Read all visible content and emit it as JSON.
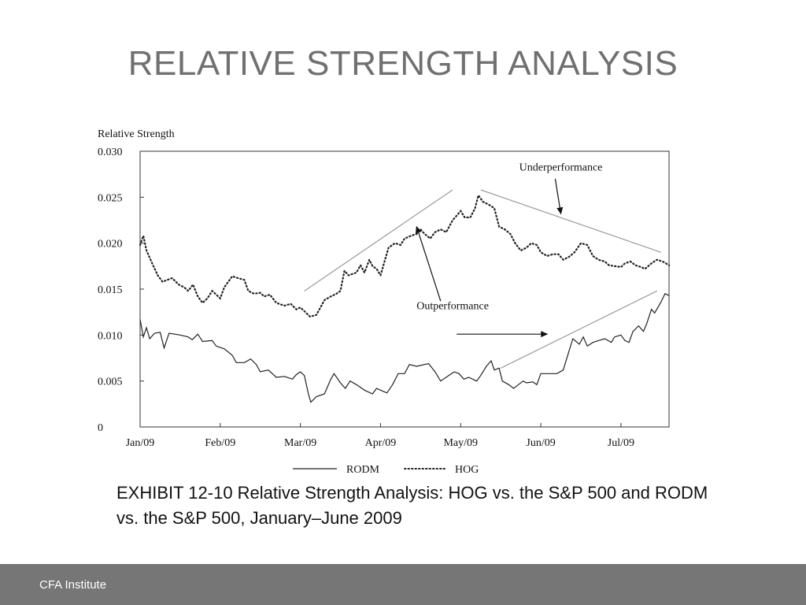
{
  "slide": {
    "title": "RELATIVE STRENGTH ANALYSIS",
    "caption": "EXHIBIT 12-10 Relative Strength Analysis: HOG vs. the S&P 500 and RODM vs. the S&P 500, January–June 2009",
    "footer": "CFA Institute"
  },
  "chart_data": {
    "type": "line",
    "ylabel": "Relative Strength",
    "xlabel": "",
    "ylim": [
      0,
      0.03
    ],
    "y_ticks": [
      "0.030",
      "0.025",
      "0.020",
      "0.015",
      "0.010",
      "0.005",
      "0"
    ],
    "y_tick_values": [
      0.03,
      0.025,
      0.02,
      0.015,
      0.01,
      0.005,
      0
    ],
    "x_ticks": [
      "Jan/09",
      "Feb/09",
      "Mar/09",
      "Apr/09",
      "May/09",
      "Jun/09",
      "Jul/09"
    ],
    "x_tick_values": [
      0,
      1,
      2,
      3,
      4,
      5,
      6
    ],
    "x_unit": "months since Jan/09",
    "grid": false,
    "legend": "bottom",
    "colors": {
      "line": "#222222",
      "trend": "#9a9a9a",
      "axis": "#333333"
    },
    "series": [
      {
        "name": "RODM",
        "style": "solid",
        "points": [
          [
            0.0,
            0.0117
          ],
          [
            0.04,
            0.0098
          ],
          [
            0.08,
            0.0108
          ],
          [
            0.12,
            0.0096
          ],
          [
            0.18,
            0.0102
          ],
          [
            0.25,
            0.0103
          ],
          [
            0.3,
            0.0086
          ],
          [
            0.36,
            0.0102
          ],
          [
            0.5,
            0.01
          ],
          [
            0.6,
            0.0098
          ],
          [
            0.65,
            0.0095
          ],
          [
            0.72,
            0.0101
          ],
          [
            0.78,
            0.0093
          ],
          [
            0.9,
            0.0094
          ],
          [
            0.95,
            0.0088
          ],
          [
            1.05,
            0.0085
          ],
          [
            1.15,
            0.0078
          ],
          [
            1.2,
            0.007
          ],
          [
            1.3,
            0.007
          ],
          [
            1.38,
            0.0074
          ],
          [
            1.45,
            0.0068
          ],
          [
            1.5,
            0.006
          ],
          [
            1.6,
            0.0062
          ],
          [
            1.7,
            0.0054
          ],
          [
            1.8,
            0.0055
          ],
          [
            1.9,
            0.0052
          ],
          [
            1.95,
            0.0057
          ],
          [
            2.0,
            0.006
          ],
          [
            2.05,
            0.0056
          ],
          [
            2.1,
            0.0036
          ],
          [
            2.13,
            0.0027
          ],
          [
            2.2,
            0.0033
          ],
          [
            2.3,
            0.0036
          ],
          [
            2.38,
            0.0052
          ],
          [
            2.42,
            0.0058
          ],
          [
            2.5,
            0.0048
          ],
          [
            2.56,
            0.0042
          ],
          [
            2.62,
            0.005
          ],
          [
            2.7,
            0.0046
          ],
          [
            2.8,
            0.004
          ],
          [
            2.9,
            0.0036
          ],
          [
            2.95,
            0.0042
          ],
          [
            3.0,
            0.004
          ],
          [
            3.08,
            0.0037
          ],
          [
            3.15,
            0.0046
          ],
          [
            3.22,
            0.0058
          ],
          [
            3.3,
            0.0058
          ],
          [
            3.36,
            0.0068
          ],
          [
            3.45,
            0.0066
          ],
          [
            3.6,
            0.0069
          ],
          [
            3.68,
            0.006
          ],
          [
            3.75,
            0.005
          ],
          [
            3.85,
            0.0056
          ],
          [
            3.92,
            0.006
          ],
          [
            3.98,
            0.0058
          ],
          [
            4.04,
            0.0052
          ],
          [
            4.1,
            0.0054
          ],
          [
            4.2,
            0.005
          ],
          [
            4.25,
            0.0056
          ],
          [
            4.32,
            0.0066
          ],
          [
            4.38,
            0.0072
          ],
          [
            4.42,
            0.0062
          ],
          [
            4.48,
            0.0064
          ],
          [
            4.52,
            0.005
          ],
          [
            4.6,
            0.0046
          ],
          [
            4.66,
            0.0042
          ],
          [
            4.72,
            0.0046
          ],
          [
            4.78,
            0.005
          ],
          [
            4.82,
            0.0048
          ],
          [
            4.9,
            0.0049
          ],
          [
            4.95,
            0.0046
          ],
          [
            5.0,
            0.0058
          ],
          [
            5.08,
            0.0058
          ],
          [
            5.15,
            0.0058
          ],
          [
            5.2,
            0.0058
          ],
          [
            5.28,
            0.0062
          ],
          [
            5.35,
            0.0082
          ],
          [
            5.4,
            0.0096
          ],
          [
            5.48,
            0.009
          ],
          [
            5.53,
            0.0098
          ],
          [
            5.58,
            0.0088
          ],
          [
            5.65,
            0.0092
          ],
          [
            5.72,
            0.0094
          ],
          [
            5.8,
            0.0096
          ],
          [
            5.88,
            0.0092
          ],
          [
            5.92,
            0.0098
          ],
          [
            6.0,
            0.01
          ],
          [
            6.05,
            0.0094
          ],
          [
            6.1,
            0.0092
          ],
          [
            6.15,
            0.0104
          ],
          [
            6.22,
            0.011
          ],
          [
            6.28,
            0.0104
          ],
          [
            6.32,
            0.0112
          ],
          [
            6.38,
            0.0128
          ],
          [
            6.42,
            0.0124
          ],
          [
            6.5,
            0.0136
          ],
          [
            6.55,
            0.0145
          ],
          [
            6.6,
            0.0143
          ]
        ]
      },
      {
        "name": "HOG",
        "style": "dotted",
        "points": [
          [
            0.0,
            0.0198
          ],
          [
            0.04,
            0.0208
          ],
          [
            0.08,
            0.0192
          ],
          [
            0.15,
            0.0178
          ],
          [
            0.22,
            0.0165
          ],
          [
            0.28,
            0.0158
          ],
          [
            0.34,
            0.016
          ],
          [
            0.4,
            0.0162
          ],
          [
            0.48,
            0.0155
          ],
          [
            0.55,
            0.0152
          ],
          [
            0.6,
            0.0148
          ],
          [
            0.66,
            0.0155
          ],
          [
            0.72,
            0.0142
          ],
          [
            0.78,
            0.0135
          ],
          [
            0.84,
            0.014
          ],
          [
            0.9,
            0.0148
          ],
          [
            1.0,
            0.014
          ],
          [
            1.05,
            0.0152
          ],
          [
            1.1,
            0.0158
          ],
          [
            1.15,
            0.0164
          ],
          [
            1.22,
            0.0162
          ],
          [
            1.3,
            0.016
          ],
          [
            1.35,
            0.0148
          ],
          [
            1.42,
            0.0145
          ],
          [
            1.5,
            0.0146
          ],
          [
            1.55,
            0.0142
          ],
          [
            1.62,
            0.0144
          ],
          [
            1.7,
            0.0135
          ],
          [
            1.8,
            0.0132
          ],
          [
            1.88,
            0.0134
          ],
          [
            1.95,
            0.0128
          ],
          [
            2.0,
            0.013
          ],
          [
            2.05,
            0.0126
          ],
          [
            2.12,
            0.012
          ],
          [
            2.2,
            0.0122
          ],
          [
            2.3,
            0.0138
          ],
          [
            2.38,
            0.0142
          ],
          [
            2.45,
            0.0145
          ],
          [
            2.5,
            0.0148
          ],
          [
            2.55,
            0.017
          ],
          [
            2.6,
            0.0165
          ],
          [
            2.7,
            0.0168
          ],
          [
            2.75,
            0.0176
          ],
          [
            2.8,
            0.0168
          ],
          [
            2.86,
            0.0182
          ],
          [
            2.9,
            0.0175
          ],
          [
            2.95,
            0.0172
          ],
          [
            3.0,
            0.0165
          ],
          [
            3.05,
            0.018
          ],
          [
            3.1,
            0.0195
          ],
          [
            3.18,
            0.02
          ],
          [
            3.25,
            0.0198
          ],
          [
            3.3,
            0.0205
          ],
          [
            3.38,
            0.0208
          ],
          [
            3.45,
            0.021
          ],
          [
            3.5,
            0.0215
          ],
          [
            3.55,
            0.021
          ],
          [
            3.62,
            0.0205
          ],
          [
            3.68,
            0.0212
          ],
          [
            3.75,
            0.0215
          ],
          [
            3.82,
            0.0212
          ],
          [
            3.9,
            0.0225
          ],
          [
            3.95,
            0.023
          ],
          [
            4.0,
            0.0235
          ],
          [
            4.05,
            0.0228
          ],
          [
            4.12,
            0.0228
          ],
          [
            4.18,
            0.0238
          ],
          [
            4.22,
            0.0252
          ],
          [
            4.28,
            0.0245
          ],
          [
            4.35,
            0.0242
          ],
          [
            4.42,
            0.0238
          ],
          [
            4.48,
            0.0218
          ],
          [
            4.55,
            0.0215
          ],
          [
            4.62,
            0.021
          ],
          [
            4.68,
            0.02
          ],
          [
            4.75,
            0.0192
          ],
          [
            4.82,
            0.0195
          ],
          [
            4.88,
            0.02
          ],
          [
            4.95,
            0.0198
          ],
          [
            5.0,
            0.019
          ],
          [
            5.08,
            0.0186
          ],
          [
            5.15,
            0.0188
          ],
          [
            5.22,
            0.0188
          ],
          [
            5.28,
            0.0182
          ],
          [
            5.35,
            0.0185
          ],
          [
            5.42,
            0.019
          ],
          [
            5.5,
            0.02
          ],
          [
            5.58,
            0.0198
          ],
          [
            5.65,
            0.0186
          ],
          [
            5.72,
            0.0182
          ],
          [
            5.8,
            0.018
          ],
          [
            5.85,
            0.0176
          ],
          [
            5.92,
            0.0175
          ],
          [
            6.0,
            0.0174
          ],
          [
            6.05,
            0.0178
          ],
          [
            6.12,
            0.018
          ],
          [
            6.18,
            0.0176
          ],
          [
            6.25,
            0.0174
          ],
          [
            6.3,
            0.0172
          ],
          [
            6.38,
            0.0178
          ],
          [
            6.45,
            0.0182
          ],
          [
            6.52,
            0.018
          ],
          [
            6.6,
            0.0176
          ]
        ]
      }
    ],
    "trendlines": [
      {
        "from": [
          2.05,
          0.0148
        ],
        "to": [
          3.9,
          0.0258
        ]
      },
      {
        "from": [
          4.25,
          0.0258
        ],
        "to": [
          6.5,
          0.019
        ]
      },
      {
        "from": [
          4.5,
          0.0064
        ],
        "to": [
          6.45,
          0.0148
        ]
      }
    ],
    "annotations": [
      {
        "text": "Underperformance",
        "at": [
          5.25,
          0.0279
        ],
        "arrow_from": [
          5.18,
          0.027
        ],
        "arrow_to": [
          5.25,
          0.0232
        ]
      },
      {
        "text": "Outperformance",
        "at": [
          3.9,
          0.0128
        ],
        "arrow_from": [
          3.75,
          0.0137
        ],
        "arrow_to": [
          3.45,
          0.0218
        ]
      },
      {
        "text": "",
        "at": [
          0,
          0
        ],
        "arrow_from": [
          3.95,
          0.0101
        ],
        "arrow_to": [
          5.08,
          0.0101
        ]
      }
    ]
  }
}
